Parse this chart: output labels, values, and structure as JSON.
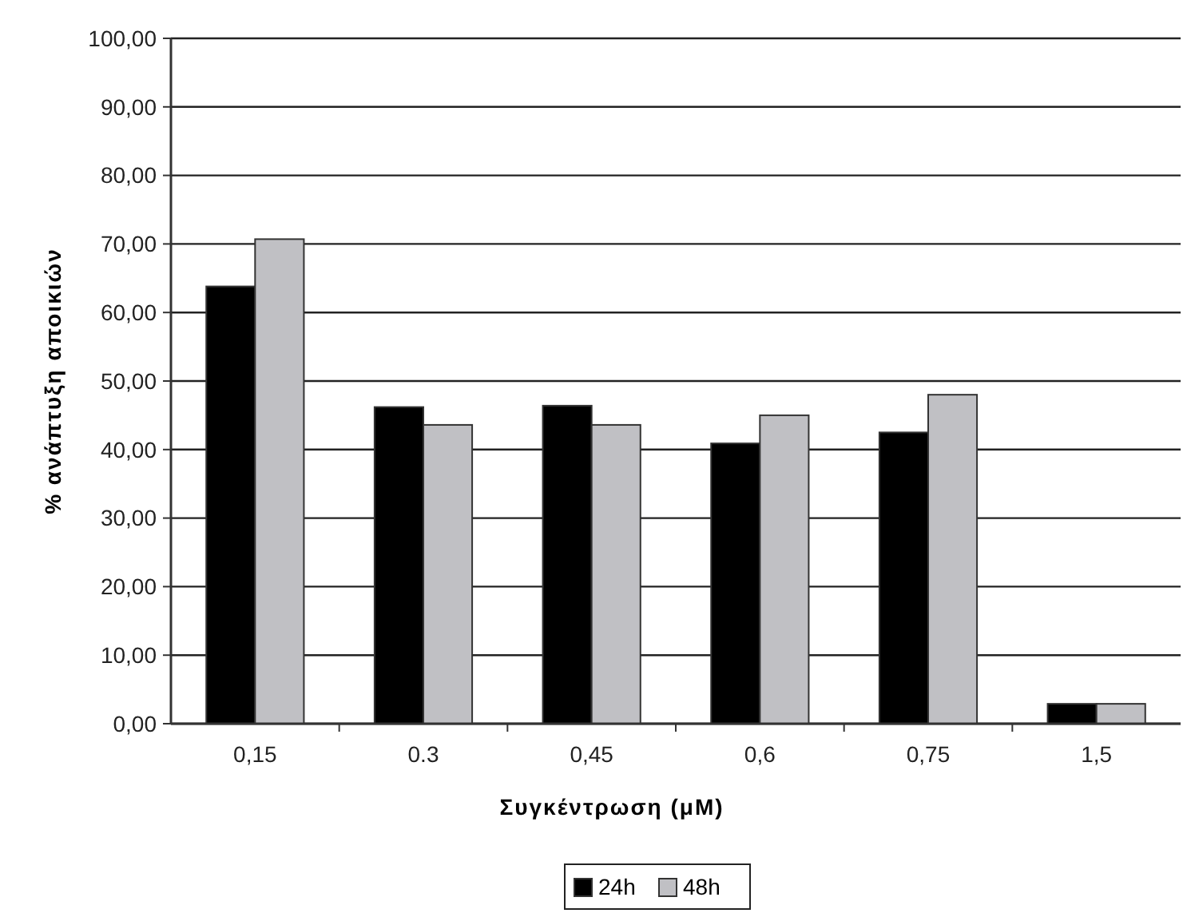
{
  "chart_data": {
    "type": "bar",
    "xlabel": "Συγκέντρωση (μM)",
    "ylabel": "% ανάπτυξη αποικιών",
    "categories": [
      "0,15",
      "0.3",
      "0,45",
      "0,6",
      "0,75",
      "1,5"
    ],
    "series": [
      {
        "name": "24h",
        "color": "#000000",
        "values": [
          63.8,
          46.2,
          46.4,
          40.9,
          42.5,
          2.9
        ]
      },
      {
        "name": "48h",
        "color": "#c0c0c4",
        "values": [
          70.7,
          43.6,
          43.6,
          45.0,
          48.0,
          2.9
        ]
      }
    ],
    "ylim": [
      0,
      100
    ],
    "yticks": [
      {
        "value": 0,
        "label": "0,00"
      },
      {
        "value": 10,
        "label": "10,00"
      },
      {
        "value": 20,
        "label": "20,00"
      },
      {
        "value": 30,
        "label": "30,00"
      },
      {
        "value": 40,
        "label": "40,00"
      },
      {
        "value": 50,
        "label": "50,00"
      },
      {
        "value": 60,
        "label": "60,00"
      },
      {
        "value": 70,
        "label": "70,00"
      },
      {
        "value": 80,
        "label": "80,00"
      },
      {
        "value": 90,
        "label": "90,00"
      },
      {
        "value": 100,
        "label": "100,00"
      }
    ],
    "grid": "y",
    "legend": "bottom"
  }
}
